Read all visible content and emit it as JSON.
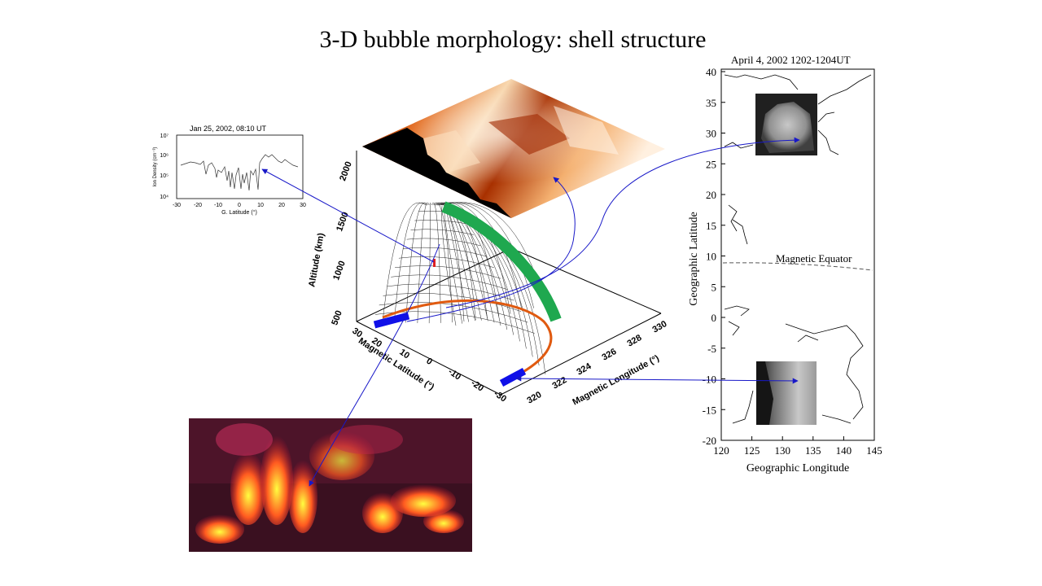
{
  "slide": {
    "title": "3-D bubble morphology: shell structure"
  },
  "ion_density_plot": {
    "title": "Jan 25, 2002, 08:10 UT",
    "ylabel": "Ion Density (cm⁻³)",
    "xlabel": "G. Latitude (°)",
    "yticks": [
      "10⁷",
      "10⁶",
      "10⁵",
      "10⁴"
    ],
    "xticks": [
      "-30",
      "-20",
      "-10",
      "0",
      "10",
      "20",
      "30"
    ]
  },
  "bubble_3d": {
    "altitude_label": "Altitude (km)",
    "altitude_ticks": [
      "500",
      "1000",
      "1500",
      "2000"
    ],
    "mag_lat_label": "Magnetic Latitude (°)",
    "mag_lat_ticks": [
      "30",
      "20",
      "10",
      "0",
      "-10",
      "-20",
      "-30"
    ],
    "mag_lon_label": "Magnetic Longitude (°)",
    "mag_lon_ticks": [
      "320",
      "322",
      "324",
      "326",
      "328",
      "330"
    ],
    "colors": {
      "shell": "#1fa84f",
      "footprint": "#1010e8",
      "base_curve": "#e05a10",
      "connector": "#1818c8"
    }
  },
  "map_panel": {
    "title": "April 4, 2002   1202-1204UT",
    "ylabel": "Geographic Latitude",
    "xlabel": "Geographic Longitude",
    "yticks": [
      "40",
      "35",
      "30",
      "25",
      "20",
      "15",
      "10",
      "5",
      "0",
      "-5",
      "-10",
      "-15",
      "-20"
    ],
    "xticks": [
      "120",
      "125",
      "130",
      "135",
      "140",
      "145"
    ],
    "equator_label": "Magnetic Equator"
  }
}
